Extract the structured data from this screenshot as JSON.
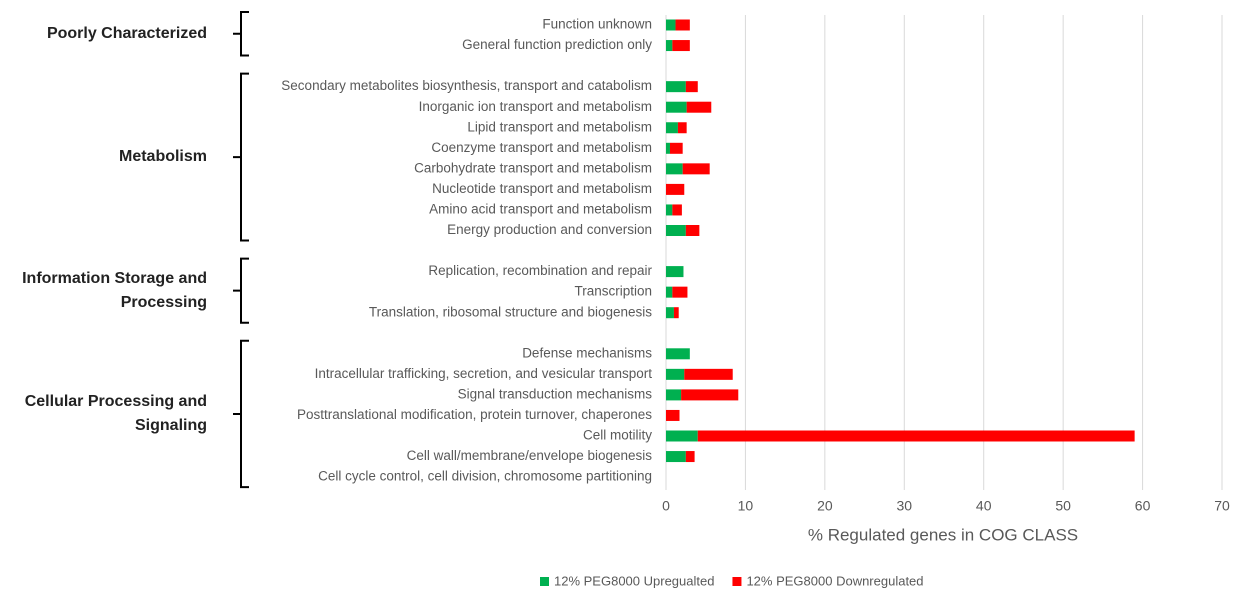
{
  "chart_data": {
    "type": "stacked-barh",
    "xlabel": "% Regulated genes in COG CLASS",
    "xlim": [
      0,
      70
    ],
    "xticks": [
      0,
      10,
      20,
      30,
      40,
      50,
      60,
      70
    ],
    "grid": true,
    "legend": "bottom",
    "groups": [
      {
        "label": "Poorly Characterized",
        "categories": [
          "Function unknown",
          "General function prediction only"
        ]
      },
      {
        "label": "Metabolism",
        "categories": [
          "Secondary metabolites biosynthesis, transport and catabolism",
          "Inorganic ion transport and metabolism",
          "Lipid transport and metabolism",
          "Coenzyme transport and metabolism",
          "Carbohydrate transport and metabolism",
          "Nucleotide transport and metabolism",
          "Amino acid transport and metabolism",
          "Energy production and conversion"
        ]
      },
      {
        "label": "Information Storage and Processing",
        "categories": [
          "Replication, recombination and repair",
          "Transcription",
          "Translation, ribosomal structure and biogenesis"
        ]
      },
      {
        "label": "Cellular Processing and Signaling",
        "categories": [
          "Defense mechanisms",
          "Intracellular trafficking, secretion, and vesicular transport",
          "Signal transduction mechanisms",
          "Posttranslational modification, protein turnover, chaperones",
          "Cell motility",
          "Cell wall/membrane/envelope biogenesis",
          "Cell cycle control, cell division, chromosome partitioning"
        ]
      }
    ],
    "series": [
      {
        "name": "12% PEG8000 Upregualted",
        "color": "#00b050",
        "values": [
          [
            1.2,
            0.8
          ],
          [
            2.5,
            2.6,
            1.5,
            0.5,
            2.1,
            0,
            0.8,
            2.5
          ],
          [
            2.2,
            0.8,
            1.0
          ],
          [
            3.0,
            2.3,
            1.9,
            0,
            4.0,
            2.5,
            0
          ]
        ]
      },
      {
        "name": "12% PEG8000 Downregulated",
        "color": "#ff0000",
        "values": [
          [
            1.8,
            2.2
          ],
          [
            1.5,
            3.1,
            1.1,
            1.6,
            3.4,
            2.3,
            1.2,
            1.7
          ],
          [
            0,
            1.9,
            0.6
          ],
          [
            0,
            6.1,
            7.2,
            1.7,
            55,
            1.1,
            0
          ]
        ]
      }
    ]
  }
}
